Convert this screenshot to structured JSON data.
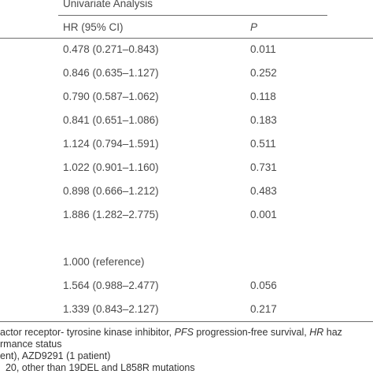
{
  "table": {
    "group_header": "Univariate Analysis",
    "columns": [
      "HR (95% CI)",
      "P"
    ],
    "rows": [
      [
        "0.478 (0.271–0.843)",
        "0.011"
      ],
      [
        "0.846 (0.635–1.127)",
        "0.252"
      ],
      [
        "0.790 (0.587–1.062)",
        "0.118"
      ],
      [
        "0.841 (0.651–1.086)",
        "0.183"
      ],
      [
        "1.124 (0.794–1.591)",
        "0.511"
      ],
      [
        "1.022 (0.901–1.160)",
        "0.731"
      ],
      [
        "0.898 (0.666–1.212)",
        "0.483"
      ],
      [
        "1.886 (1.282–2.775)",
        "0.001"
      ],
      null,
      [
        "1.000 (reference)",
        null
      ],
      [
        "1.564 (0.988–2.477)",
        "0.056"
      ],
      [
        "1.339 (0.843–2.127)",
        "0.217"
      ]
    ]
  },
  "footnotes": [
    [
      {
        "text": "actor receptor- tyrosine kinase inhibitor, "
      },
      {
        "text": "PFS",
        "italic": true
      },
      {
        "text": " progression-free survival, "
      },
      {
        "text": "HR",
        "italic": true
      },
      {
        "text": " haz"
      }
    ],
    [
      {
        "text": "rmance status"
      }
    ],
    [
      {
        "text": "ent), AZD9291 (1 patient)"
      }
    ],
    [
      {
        "text": "  20, other than 19DEL and L858R mutations"
      }
    ]
  ]
}
